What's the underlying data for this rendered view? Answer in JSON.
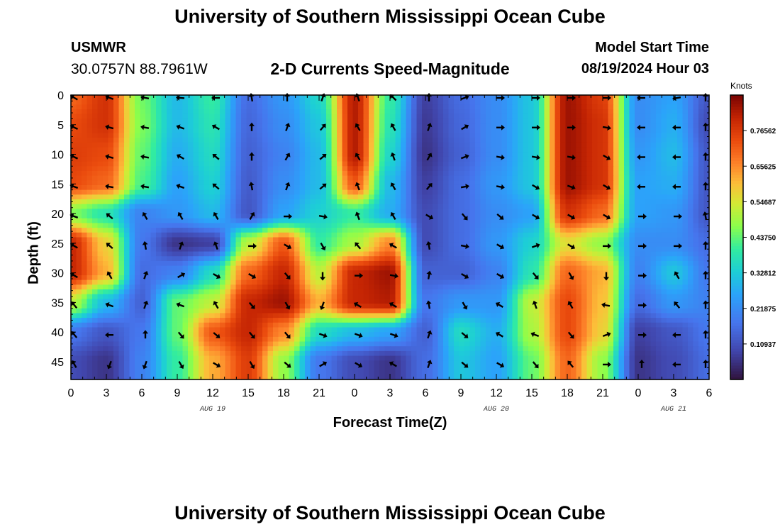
{
  "page": {
    "title": "University of Southern Mississippi Ocean Cube",
    "footer_title": "University of Southern Mississippi Ocean Cube",
    "station": "USMWR",
    "coordinates": "30.0757N  88.7961W",
    "subtitle": "2-D Currents Speed-Magnitude",
    "model_start_label": "Model Start Time",
    "model_start_value": "08/19/2024 Hour 03"
  },
  "chart_data": {
    "type": "heatmap",
    "title": "2-D Currents Speed-Magnitude",
    "xlabel": "Forecast Time(Z)",
    "ylabel": "Depth (ft)",
    "x_range_hours": [
      0,
      54
    ],
    "y_range_ft": [
      0,
      48
    ],
    "x_ticks": [
      "0",
      "3",
      "6",
      "9",
      "12",
      "15",
      "18",
      "21",
      "0",
      "3",
      "6",
      "9",
      "12",
      "15",
      "18",
      "21",
      "0",
      "3",
      "6"
    ],
    "y_ticks": [
      "0",
      "5",
      "10",
      "15",
      "20",
      "25",
      "30",
      "35",
      "40",
      "45"
    ],
    "date_labels": [
      {
        "text": "AUG 19",
        "hour": 12
      },
      {
        "text": "AUG 20",
        "hour": 36
      },
      {
        "text": "AUG 21",
        "hour": 51
      }
    ],
    "colorbar": {
      "label": "Knots",
      "min": 0,
      "max": 0.875,
      "tick_labels": [
        "0.10937",
        "0.21875",
        "0.32812",
        "0.43750",
        "0.54687",
        "0.65625",
        "0.76562"
      ],
      "tick_values": [
        0.10937,
        0.21875,
        0.32812,
        0.4375,
        0.54687,
        0.65625,
        0.76562
      ]
    },
    "depth_levels_ft": [
      0,
      5,
      10,
      15,
      20,
      25,
      30,
      35,
      40,
      45
    ],
    "time_steps_hours": [
      0,
      3,
      6,
      9,
      12,
      15,
      18,
      21,
      24,
      27,
      30,
      33,
      36,
      39,
      42,
      45,
      48,
      51,
      54
    ],
    "speed_knots": [
      [
        0.7,
        0.78,
        0.45,
        0.3,
        0.4,
        0.16,
        0.24,
        0.35,
        0.82,
        0.4,
        0.08,
        0.16,
        0.22,
        0.32,
        0.84,
        0.76,
        0.22,
        0.26,
        0.12
      ],
      [
        0.74,
        0.78,
        0.46,
        0.3,
        0.38,
        0.15,
        0.22,
        0.32,
        0.82,
        0.38,
        0.07,
        0.15,
        0.22,
        0.32,
        0.84,
        0.78,
        0.22,
        0.28,
        0.1
      ],
      [
        0.76,
        0.74,
        0.44,
        0.28,
        0.36,
        0.14,
        0.2,
        0.3,
        0.82,
        0.35,
        0.06,
        0.14,
        0.22,
        0.32,
        0.84,
        0.78,
        0.24,
        0.3,
        0.12
      ],
      [
        0.74,
        0.7,
        0.42,
        0.26,
        0.34,
        0.13,
        0.22,
        0.3,
        0.72,
        0.3,
        0.08,
        0.16,
        0.24,
        0.32,
        0.84,
        0.78,
        0.26,
        0.28,
        0.12
      ],
      [
        0.46,
        0.38,
        0.2,
        0.24,
        0.3,
        0.12,
        0.26,
        0.34,
        0.4,
        0.28,
        0.1,
        0.16,
        0.22,
        0.26,
        0.78,
        0.7,
        0.26,
        0.24,
        0.12
      ],
      [
        0.8,
        0.58,
        0.18,
        0.06,
        0.08,
        0.52,
        0.72,
        0.4,
        0.5,
        0.66,
        0.1,
        0.16,
        0.24,
        0.34,
        0.56,
        0.48,
        0.22,
        0.22,
        0.16
      ],
      [
        0.8,
        0.62,
        0.16,
        0.2,
        0.36,
        0.7,
        0.8,
        0.52,
        0.8,
        0.84,
        0.14,
        0.14,
        0.2,
        0.38,
        0.7,
        0.62,
        0.2,
        0.32,
        0.18
      ],
      [
        0.52,
        0.3,
        0.14,
        0.44,
        0.52,
        0.8,
        0.84,
        0.62,
        0.8,
        0.82,
        0.18,
        0.24,
        0.24,
        0.52,
        0.74,
        0.6,
        0.16,
        0.24,
        0.2
      ],
      [
        0.18,
        0.12,
        0.18,
        0.44,
        0.72,
        0.8,
        0.66,
        0.36,
        0.3,
        0.26,
        0.14,
        0.36,
        0.28,
        0.5,
        0.74,
        0.58,
        0.08,
        0.12,
        0.18
      ],
      [
        0.1,
        0.06,
        0.2,
        0.4,
        0.62,
        0.76,
        0.48,
        0.18,
        0.1,
        0.06,
        0.16,
        0.32,
        0.26,
        0.44,
        0.7,
        0.48,
        0.06,
        0.1,
        0.16
      ]
    ],
    "direction_deg": [
      [
        120,
        110,
        100,
        95,
        90,
        170,
        180,
        200,
        160,
        135,
        180,
        250,
        270,
        270,
        270,
        270,
        90,
        80,
        180
      ],
      [
        115,
        105,
        100,
        110,
        120,
        180,
        200,
        220,
        150,
        150,
        200,
        240,
        270,
        270,
        270,
        280,
        90,
        90,
        180
      ],
      [
        115,
        105,
        100,
        120,
        130,
        180,
        210,
        230,
        150,
        160,
        210,
        250,
        280,
        280,
        280,
        300,
        90,
        90,
        180
      ],
      [
        110,
        100,
        100,
        110,
        130,
        170,
        200,
        230,
        160,
        150,
        220,
        260,
        280,
        300,
        290,
        300,
        90,
        90,
        180
      ],
      [
        110,
        130,
        150,
        150,
        150,
        210,
        270,
        280,
        160,
        150,
        300,
        320,
        310,
        300,
        300,
        300,
        270,
        270,
        170
      ],
      [
        120,
        130,
        170,
        200,
        160,
        270,
        300,
        330,
        140,
        120,
        170,
        280,
        300,
        250,
        300,
        270,
        270,
        270,
        180
      ],
      [
        120,
        150,
        200,
        240,
        300,
        300,
        320,
        0,
        270,
        280,
        190,
        300,
        300,
        320,
        330,
        0,
        270,
        150,
        180
      ],
      [
        140,
        110,
        200,
        110,
        150,
        320,
        330,
        20,
        120,
        120,
        170,
        330,
        120,
        160,
        150,
        100,
        270,
        140,
        180
      ],
      [
        140,
        90,
        180,
        320,
        310,
        320,
        320,
        290,
        290,
        290,
        200,
        310,
        120,
        110,
        320,
        250,
        270,
        90,
        180
      ],
      [
        150,
        20,
        20,
        330,
        300,
        330,
        310,
        240,
        300,
        120,
        200,
        310,
        300,
        320,
        140,
        270,
        180,
        90,
        180
      ]
    ]
  }
}
